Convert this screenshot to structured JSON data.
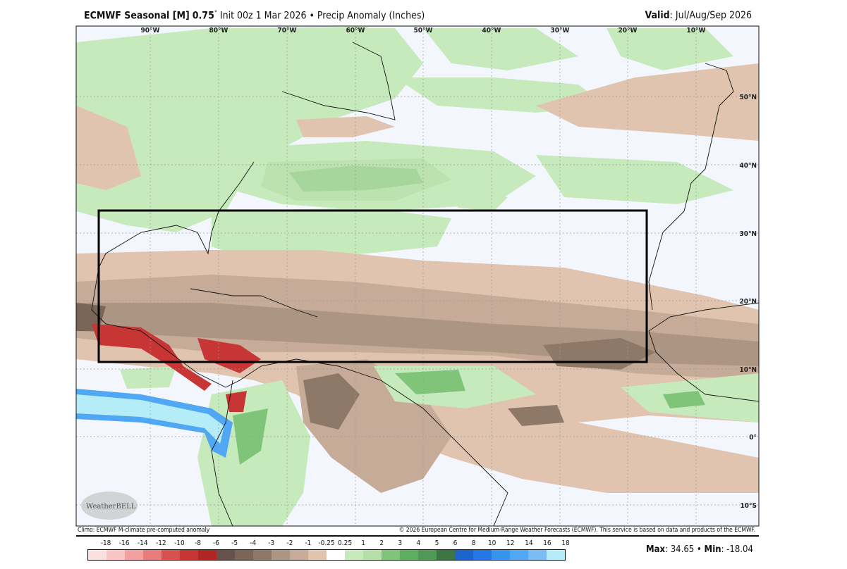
{
  "header": {
    "model": "ECMWF Seasonal [M]",
    "resolution": "0.75",
    "degree": "°",
    "init": "Init 00z 1 Mar 2026",
    "bullet": "•",
    "field": "Precip Anomaly (Inches)",
    "valid_label": "Valid",
    "valid_value": ": Jul/Aug/Sep 2026"
  },
  "map": {
    "longitude_labels": [
      "90°W",
      "80°W",
      "70°W",
      "60°W",
      "50°W",
      "40°W",
      "30°W",
      "20°W",
      "10°W"
    ],
    "latitude_labels": [
      "50°N",
      "40°N",
      "30°N",
      "20°N",
      "10°N",
      "0°",
      "10°S"
    ],
    "logo_text": "WeatherBELL",
    "colors": {
      "background": "#f3f7fd",
      "box": "#000000"
    }
  },
  "footer": {
    "climo": "Climo: ECMWF M-climate pre-computed anomaly",
    "copyright": "© 2026 European Centre for Medium-Range Weather Forecasts (ECMWF). This service is based on data and products of the ECMWF."
  },
  "colorbar": {
    "labels": [
      "-18",
      "-16",
      "-14",
      "-12",
      "-10",
      "-8",
      "-6",
      "-5",
      "-4",
      "-3",
      "-2",
      "-1",
      "-0.25",
      "0.25",
      "1",
      "2",
      "3",
      "4",
      "5",
      "6",
      "8",
      "10",
      "12",
      "14",
      "16",
      "18"
    ],
    "colors": [
      "#fbe0e0",
      "#f9c4c4",
      "#f2a0a0",
      "#e87c7c",
      "#d85050",
      "#c83535",
      "#b22525",
      "#65524a",
      "#7b6558",
      "#8e7868",
      "#ad9583",
      "#c6ab98",
      "#e0c4b0",
      "#ffffff",
      "#c7eabd",
      "#b6dea9",
      "#80c47a",
      "#5cae60",
      "#4e9a55",
      "#3f7545",
      "#1a64cc",
      "#2676e6",
      "#3594ee",
      "#50a8f5",
      "#7bbcf7",
      "#b4ecf8"
    ]
  },
  "stats": {
    "max_label": "Max",
    "max_value": ": 34.65",
    "sep": " • ",
    "min_label": "Min",
    "min_value": ": -18.04"
  }
}
